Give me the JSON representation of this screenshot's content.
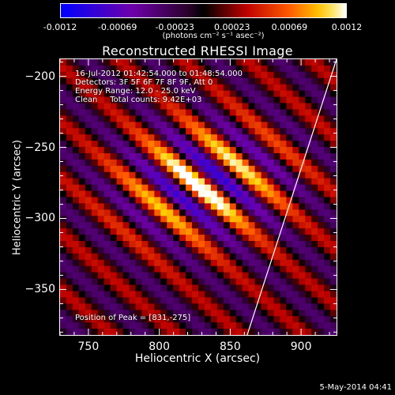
{
  "colorbar": {
    "ticks": [
      "-0.0012",
      "-0.00069",
      "-0.00023",
      "0.00023",
      "0.00069",
      "0.0012"
    ],
    "unit": "(photons cm⁻² s⁻¹ asec⁻²)",
    "range": [
      -0.0012,
      0.0012
    ]
  },
  "chart_data": {
    "type": "heatmap",
    "title": "Reconstructed RHESSI Image",
    "xlabel": "Heliocentric X (arcsec)",
    "ylabel": "Heliocentric Y (arcsec)",
    "xlim": [
      730,
      925
    ],
    "ylim": [
      -382,
      -188
    ],
    "xticks": [
      750,
      800,
      850,
      900
    ],
    "yticks": [
      -200,
      -250,
      -300,
      -350
    ],
    "annotations": {
      "time": "16-Jul-2012 01:42:54.000 to 01:48:54.000",
      "detectors": "Detectors: 3F 5F 6F 7F 8F 9F, Att 0",
      "energy": "Energy Range: 12.0 - 25.0 keV",
      "clean": "Clean     Total counts: 9.42E+03",
      "peak": "Position of Peak = [831,-275]"
    },
    "peak": [
      831,
      -275
    ],
    "limb_line": [
      [
        862,
        -382
      ],
      [
        925,
        -188
      ]
    ],
    "colormap": "red-temperature"
  },
  "timestamp": "5-May-2014 04:41"
}
